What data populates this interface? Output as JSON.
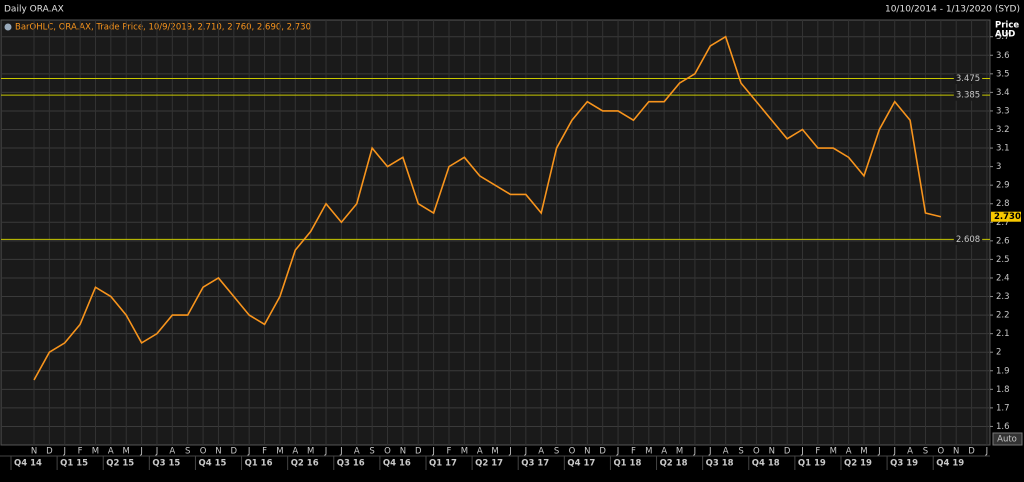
{
  "chart_data": {
    "type": "line",
    "title": "Daily ORA.AX",
    "date_range": "10/10/2014 - 1/13/2020 (SYD)",
    "legend_text": "BarOHLC, ORA.AX, Trade Price, 10/9/2019, 2.710, 2.760, 2.690, 2.730",
    "y_axis_label": [
      "Price",
      "AUD"
    ],
    "auto_label": "Auto",
    "categories": [
      "N",
      "D",
      "J",
      "F",
      "M",
      "A",
      "M",
      "J",
      "J",
      "A",
      "S",
      "O",
      "N",
      "D",
      "J",
      "F",
      "M",
      "A",
      "M",
      "J",
      "J",
      "A",
      "S",
      "O",
      "N",
      "D",
      "J",
      "F",
      "M",
      "A",
      "M",
      "J",
      "J",
      "A",
      "S",
      "O",
      "N",
      "D",
      "J",
      "F",
      "M",
      "A",
      "M",
      "J",
      "J",
      "A",
      "S",
      "O",
      "N",
      "D",
      "J",
      "F",
      "M",
      "A",
      "M",
      "J",
      "J",
      "A",
      "S",
      "O",
      "N",
      "D",
      "J"
    ],
    "quarters": [
      "Q4 14",
      "Q1 15",
      "Q2 15",
      "Q3 15",
      "Q4 15",
      "Q1 16",
      "Q2 16",
      "Q3 16",
      "Q4 16",
      "Q1 17",
      "Q2 17",
      "Q3 17",
      "Q4 17",
      "Q1 18",
      "Q2 18",
      "Q3 18",
      "Q4 18",
      "Q1 19",
      "Q2 19",
      "Q3 19",
      "Q4 19"
    ],
    "series": [
      {
        "name": "ORA.AX",
        "color": "#f7941d",
        "values": [
          1.85,
          2.0,
          2.05,
          2.15,
          2.35,
          2.3,
          2.2,
          2.05,
          2.1,
          2.2,
          2.2,
          2.35,
          2.4,
          2.3,
          2.2,
          2.15,
          2.3,
          2.55,
          2.65,
          2.8,
          2.7,
          2.8,
          3.1,
          3.0,
          3.05,
          2.8,
          2.75,
          3.0,
          3.05,
          2.95,
          2.9,
          2.85,
          2.85,
          2.75,
          3.1,
          3.25,
          3.35,
          3.3,
          3.3,
          3.25,
          3.35,
          3.35,
          3.45,
          3.5,
          3.65,
          3.7,
          3.45,
          3.35,
          3.25,
          3.15,
          3.2,
          3.1,
          3.1,
          3.05,
          2.95,
          3.2,
          3.35,
          3.25,
          2.75,
          2.73,
          null,
          null,
          null
        ]
      }
    ],
    "levels": [
      3.475,
      3.385,
      2.608
    ],
    "level_color": "#c8c800",
    "last_price": {
      "value": 2.73,
      "label": "2.730"
    },
    "ylim": [
      1.5,
      3.79
    ],
    "yticks": [
      1.6,
      1.7,
      1.8,
      1.9,
      2,
      2.1,
      2.2,
      2.3,
      2.4,
      2.5,
      2.6,
      2.7,
      2.8,
      2.9,
      3,
      3.1,
      3.2,
      3.3,
      3.4,
      3.5,
      3.6,
      3.7
    ],
    "grid": true
  }
}
